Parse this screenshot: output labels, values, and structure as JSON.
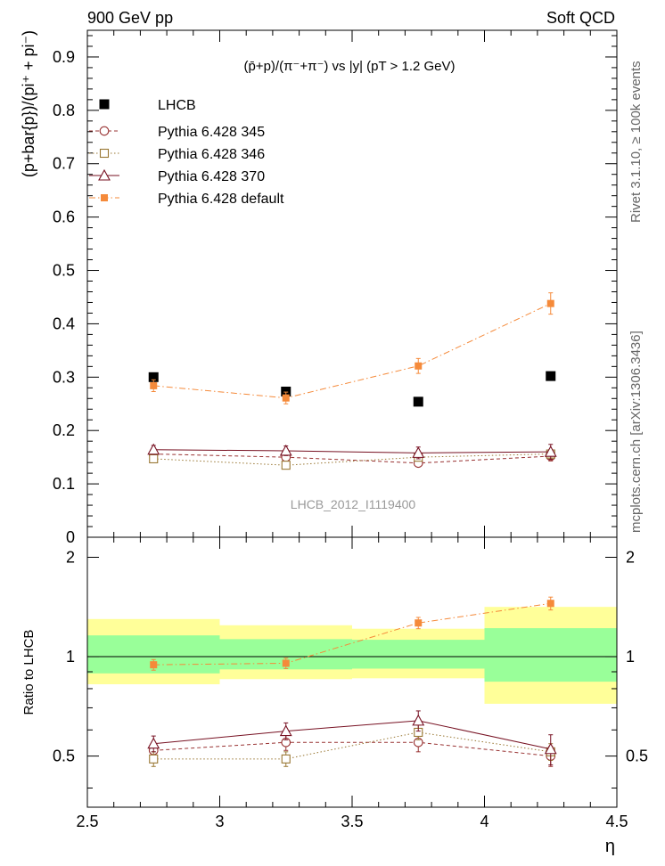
{
  "header": {
    "left": "900 GeV pp",
    "right": "Soft QCD"
  },
  "side_labels": {
    "rivet": "Rivet 3.1.10, ≥ 100k events",
    "mcplots": "mcplots.cern.ch [arXiv:1306.3436]"
  },
  "chart_data": [
    {
      "panel": "main",
      "type": "scatter",
      "title": "(p̄+p)/(π⁻+π⁻) vs |y| (pT > 1.2 GeV)",
      "ylabel": "(p+bar{p})/(pi⁺ + pi⁻)",
      "xlabel": "",
      "watermark": "LHCB_2012_I1119400",
      "x": [
        2.75,
        3.25,
        3.75,
        4.25
      ],
      "xlim": [
        2.5,
        4.5
      ],
      "ylim": [
        0,
        0.95
      ],
      "yticks": [
        0,
        0.1,
        0.2,
        0.3,
        0.4,
        0.5,
        0.6,
        0.7,
        0.8,
        0.9
      ],
      "ytick_labels": [
        "0",
        "0.1",
        "0.2",
        "0.3",
        "0.4",
        "0.5",
        "0.6",
        "0.7",
        "0.8",
        "0.9"
      ],
      "legend_position": "top-left",
      "series": [
        {
          "name": "LHCB",
          "color": "#000000",
          "marker": "filled-square",
          "line": "none",
          "values": [
            0.3,
            0.273,
            0.254,
            0.302
          ],
          "errors": [
            0,
            0,
            0,
            0
          ]
        },
        {
          "name": "Pythia 6.428 345",
          "color": "#993333",
          "marker": "open-circle",
          "line": "dashed",
          "values": [
            0.156,
            0.15,
            0.139,
            0.152
          ],
          "errors": [
            0.007,
            0.007,
            0.007,
            0.009
          ]
        },
        {
          "name": "Pythia 6.428 346",
          "color": "#997733",
          "marker": "open-square",
          "line": "dotted",
          "values": [
            0.147,
            0.135,
            0.15,
            0.156
          ],
          "errors": [
            0.006,
            0.006,
            0.007,
            0.008
          ]
        },
        {
          "name": "Pythia 6.428 370",
          "color": "#771122",
          "marker": "open-triangle",
          "line": "solid",
          "values": [
            0.164,
            0.162,
            0.158,
            0.16
          ],
          "errors": [
            0.008,
            0.009,
            0.011,
            0.014
          ]
        },
        {
          "name": "Pythia 6.428 default",
          "color": "#f58a3a",
          "marker": "filled-square-small",
          "line": "dashdot",
          "values": [
            0.284,
            0.261,
            0.321,
            0.438
          ],
          "errors": [
            0.011,
            0.011,
            0.014,
            0.02
          ]
        }
      ]
    },
    {
      "panel": "ratio",
      "type": "scatter",
      "ylabel": "Ratio to LHCB",
      "xlabel": "η",
      "x": [
        2.75,
        3.25,
        3.75,
        4.25
      ],
      "xlim": [
        2.5,
        4.5
      ],
      "ylim": [
        0.35,
        2.3
      ],
      "yticks": [
        0.5,
        1,
        2
      ],
      "ytick_labels": [
        "0.5",
        "1",
        "2"
      ],
      "xticks": [
        2.5,
        3,
        3.5,
        4,
        4.5
      ],
      "xtick_labels": [
        "2.5",
        "3",
        "3.5",
        "4",
        "4.5"
      ],
      "bands": [
        {
          "x": [
            2.5,
            3.0
          ],
          "yellow": [
            0.825,
            1.3
          ],
          "green": [
            0.89,
            1.16
          ]
        },
        {
          "x": [
            3.0,
            3.5
          ],
          "yellow": [
            0.855,
            1.245
          ],
          "green": [
            0.915,
            1.13
          ]
        },
        {
          "x": [
            3.5,
            4.0
          ],
          "yellow": [
            0.86,
            1.215
          ],
          "green": [
            0.92,
            1.125
          ]
        },
        {
          "x": [
            4.0,
            4.5
          ],
          "yellow": [
            0.72,
            1.415
          ],
          "green": [
            0.84,
            1.22
          ]
        }
      ],
      "series": [
        {
          "name": "Pythia 6.428 345",
          "color": "#993333",
          "marker": "open-circle",
          "line": "dashed",
          "values": [
            0.52,
            0.55,
            0.55,
            0.5
          ],
          "errors": [
            0.03,
            0.03,
            0.035,
            0.035
          ]
        },
        {
          "name": "Pythia 6.428 346",
          "color": "#997733",
          "marker": "open-square",
          "line": "dotted",
          "values": [
            0.49,
            0.49,
            0.59,
            0.515
          ],
          "errors": [
            0.025,
            0.025,
            0.03,
            0.03
          ]
        },
        {
          "name": "Pythia 6.428 370",
          "color": "#771122",
          "marker": "open-triangle",
          "line": "solid",
          "values": [
            0.545,
            0.595,
            0.64,
            0.525
          ],
          "errors": [
            0.03,
            0.035,
            0.045,
            0.055
          ]
        },
        {
          "name": "Pythia 6.428 default",
          "color": "#f58a3a",
          "marker": "filled-square-small",
          "line": "dashdot",
          "values": [
            0.945,
            0.955,
            1.265,
            1.45
          ],
          "errors": [
            0.035,
            0.035,
            0.05,
            0.065
          ]
        }
      ]
    }
  ]
}
